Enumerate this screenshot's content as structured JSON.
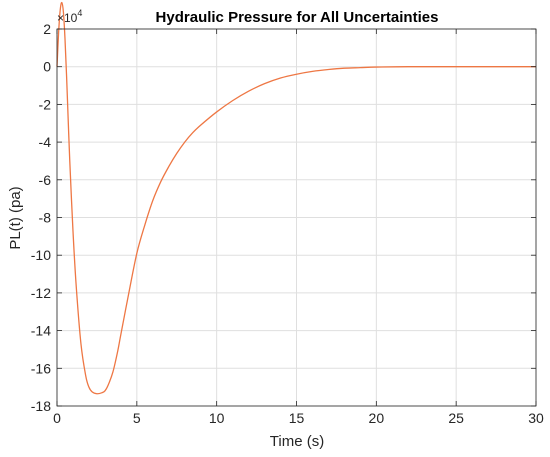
{
  "chart_data": {
    "type": "line",
    "title": "Hydraulic Pressure for All Uncertainties",
    "xlabel": "Time (s)",
    "ylabel": "PL(t) (pa)",
    "y_exponent_base": "×10",
    "y_exponent_power": "4",
    "xlim": [
      0,
      30
    ],
    "ylim": [
      -18,
      2
    ],
    "x_ticks": [
      "0",
      "5",
      "10",
      "15",
      "20",
      "25",
      "30"
    ],
    "y_ticks": [
      "2",
      "0",
      "-2",
      "-4",
      "-6",
      "-8",
      "-10",
      "-12",
      "-14",
      "-16",
      "-18"
    ],
    "grid": true,
    "series": [
      {
        "color": "#ee7744",
        "x": [
          0,
          0.1,
          0.2,
          0.3,
          0.4,
          0.5,
          0.6,
          0.7,
          0.8,
          1.0,
          1.2,
          1.5,
          1.8,
          2.0,
          2.2,
          2.5,
          2.8,
          3.0,
          3.2,
          3.5,
          3.8,
          4.0,
          4.5,
          5.0,
          5.5,
          6.0,
          6.5,
          7.0,
          7.5,
          8.0,
          8.5,
          9.0,
          10.0,
          11.0,
          12.0,
          13.0,
          14.0,
          15.0,
          16.0,
          17.0,
          18.0,
          19.0,
          20.0,
          22.0,
          24.0,
          26.0,
          28.0,
          30.0
        ],
        "y": [
          0.0,
          1.8,
          3.0,
          3.4,
          2.9,
          1.5,
          -0.5,
          -2.8,
          -5.0,
          -8.7,
          -11.6,
          -14.7,
          -16.4,
          -17.0,
          -17.25,
          -17.35,
          -17.3,
          -17.2,
          -16.9,
          -16.2,
          -15.1,
          -14.2,
          -12.0,
          -9.9,
          -8.4,
          -7.1,
          -6.1,
          -5.3,
          -4.6,
          -4.0,
          -3.5,
          -3.1,
          -2.4,
          -1.8,
          -1.3,
          -0.9,
          -0.6,
          -0.4,
          -0.25,
          -0.15,
          -0.08,
          -0.05,
          -0.02,
          0.0,
          0.0,
          0.0,
          0.0,
          0.0
        ]
      }
    ]
  }
}
